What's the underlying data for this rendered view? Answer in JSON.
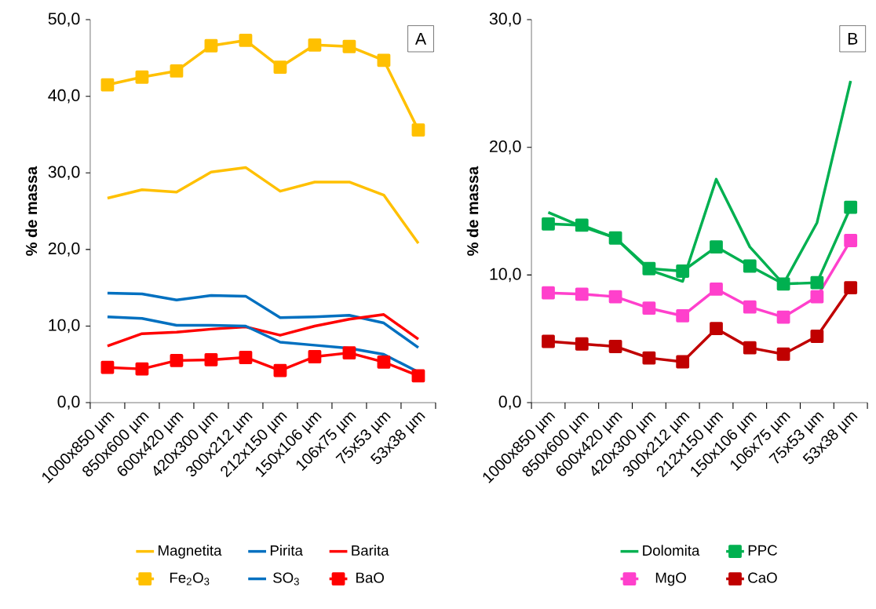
{
  "chart_data": [
    {
      "type": "line",
      "ylabel": "% de massa",
      "annotations": [
        "A"
      ],
      "categories": [
        "1000x850 µm",
        "850x600 µm",
        "600x420 µm",
        "420x300 µm",
        "300x212 µm",
        "212x150 µm",
        "150x106 µm",
        "106x75 µm",
        "75x53 µm",
        "53x38 µm"
      ],
      "ylim": [
        0,
        50
      ],
      "yticks": [
        {
          "value": 0,
          "label": "0,0"
        },
        {
          "value": 10,
          "label": "10,0"
        },
        {
          "value": 20,
          "label": "20,0"
        },
        {
          "value": 30,
          "label": "30,0"
        },
        {
          "value": 40,
          "label": "40,0"
        },
        {
          "value": 50,
          "label": "50,0"
        }
      ],
      "legend": "bottom",
      "grid": false,
      "series": [
        {
          "name": "Magnetita",
          "color": "#ffc000",
          "marker": "none",
          "values": [
            26.7,
            27.8,
            27.5,
            30.1,
            30.7,
            27.6,
            28.8,
            28.8,
            27.1,
            20.8
          ]
        },
        {
          "name": "Pirita",
          "color": "#0070c0",
          "marker": "none",
          "values": [
            14.3,
            14.2,
            13.4,
            14.0,
            13.9,
            11.1,
            11.2,
            11.4,
            10.4,
            7.2
          ]
        },
        {
          "name": "Barita",
          "color": "#ff0000",
          "marker": "none",
          "values": [
            7.4,
            9.0,
            9.2,
            9.6,
            9.9,
            8.8,
            10.0,
            10.9,
            11.5,
            8.3
          ]
        },
        {
          "name": "Fe$_{2}$O$_{3}$",
          "color": "#ffc000",
          "marker": "square",
          "values": [
            41.5,
            42.5,
            43.3,
            46.6,
            47.3,
            43.8,
            46.7,
            46.5,
            44.7,
            35.6
          ]
        },
        {
          "name": "SO$_{3}$",
          "color": "#0070c0",
          "marker": "none",
          "values": [
            11.2,
            11.0,
            10.1,
            10.1,
            10.0,
            7.9,
            7.5,
            7.1,
            6.3,
            4.0
          ]
        },
        {
          "name": "BaO",
          "color": "#ff0000",
          "marker": "square",
          "values": [
            4.6,
            4.4,
            5.5,
            5.6,
            5.9,
            4.2,
            6.0,
            6.5,
            5.3,
            3.5
          ]
        }
      ]
    },
    {
      "type": "line",
      "ylabel": "% de massa",
      "annotations": [
        "B"
      ],
      "categories": [
        "1000x850 µm",
        "850x600 µm",
        "600x420 µm",
        "420x300 µm",
        "300x212 µm",
        "212x150 µm",
        "150x106 µm",
        "106x75 µm",
        "75x53 µm",
        "53x38 µm"
      ],
      "ylim": [
        0,
        30
      ],
      "yticks": [
        {
          "value": 0,
          "label": "0,0"
        },
        {
          "value": 10,
          "label": "10,0"
        },
        {
          "value": 20,
          "label": "20,0"
        },
        {
          "value": 30,
          "label": "30,0"
        }
      ],
      "legend": "bottom",
      "grid": false,
      "series": [
        {
          "name": "Dolomita",
          "color": "#00b050",
          "marker": "none",
          "values": [
            14.9,
            13.8,
            12.9,
            10.4,
            9.5,
            17.5,
            12.2,
            9.3,
            14.1,
            25.2
          ]
        },
        {
          "name": "PPC",
          "color": "#00b050",
          "marker": "square",
          "values": [
            14.0,
            13.9,
            12.9,
            10.5,
            10.3,
            12.2,
            10.7,
            9.3,
            9.4,
            15.3
          ]
        },
        {
          "name": "MgO",
          "color": "#ff40cc",
          "marker": "square",
          "values": [
            8.6,
            8.5,
            8.3,
            7.4,
            6.8,
            8.9,
            7.5,
            6.7,
            8.3,
            12.7
          ]
        },
        {
          "name": "CaO",
          "color": "#c00000",
          "marker": "square",
          "values": [
            4.8,
            4.6,
            4.4,
            3.5,
            3.2,
            5.8,
            4.3,
            3.8,
            5.2,
            9.0
          ]
        }
      ]
    }
  ]
}
